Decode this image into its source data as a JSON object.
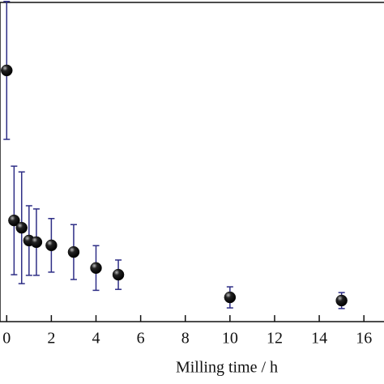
{
  "chart_data": {
    "type": "scatter",
    "xlabel": "Milling time / h",
    "x": [
      0,
      0.33,
      0.67,
      1,
      1.33,
      2,
      3,
      4,
      5,
      10,
      15
    ],
    "values": [
      7.87,
      3.17,
      2.94,
      2.54,
      2.49,
      2.39,
      2.18,
      1.68,
      1.47,
      0.76,
      0.66
    ],
    "errors": [
      2.16,
      1.7,
      1.75,
      1.09,
      1.04,
      0.84,
      0.86,
      0.7,
      0.46,
      0.33,
      0.25
    ],
    "color": "#111111",
    "error_color": "#2e2e86",
    "xlim": [
      -0.3,
      16.9
    ],
    "xticks": [
      0,
      2,
      4,
      6,
      8,
      10,
      12,
      14,
      16
    ],
    "ylim": [
      0,
      10
    ]
  }
}
